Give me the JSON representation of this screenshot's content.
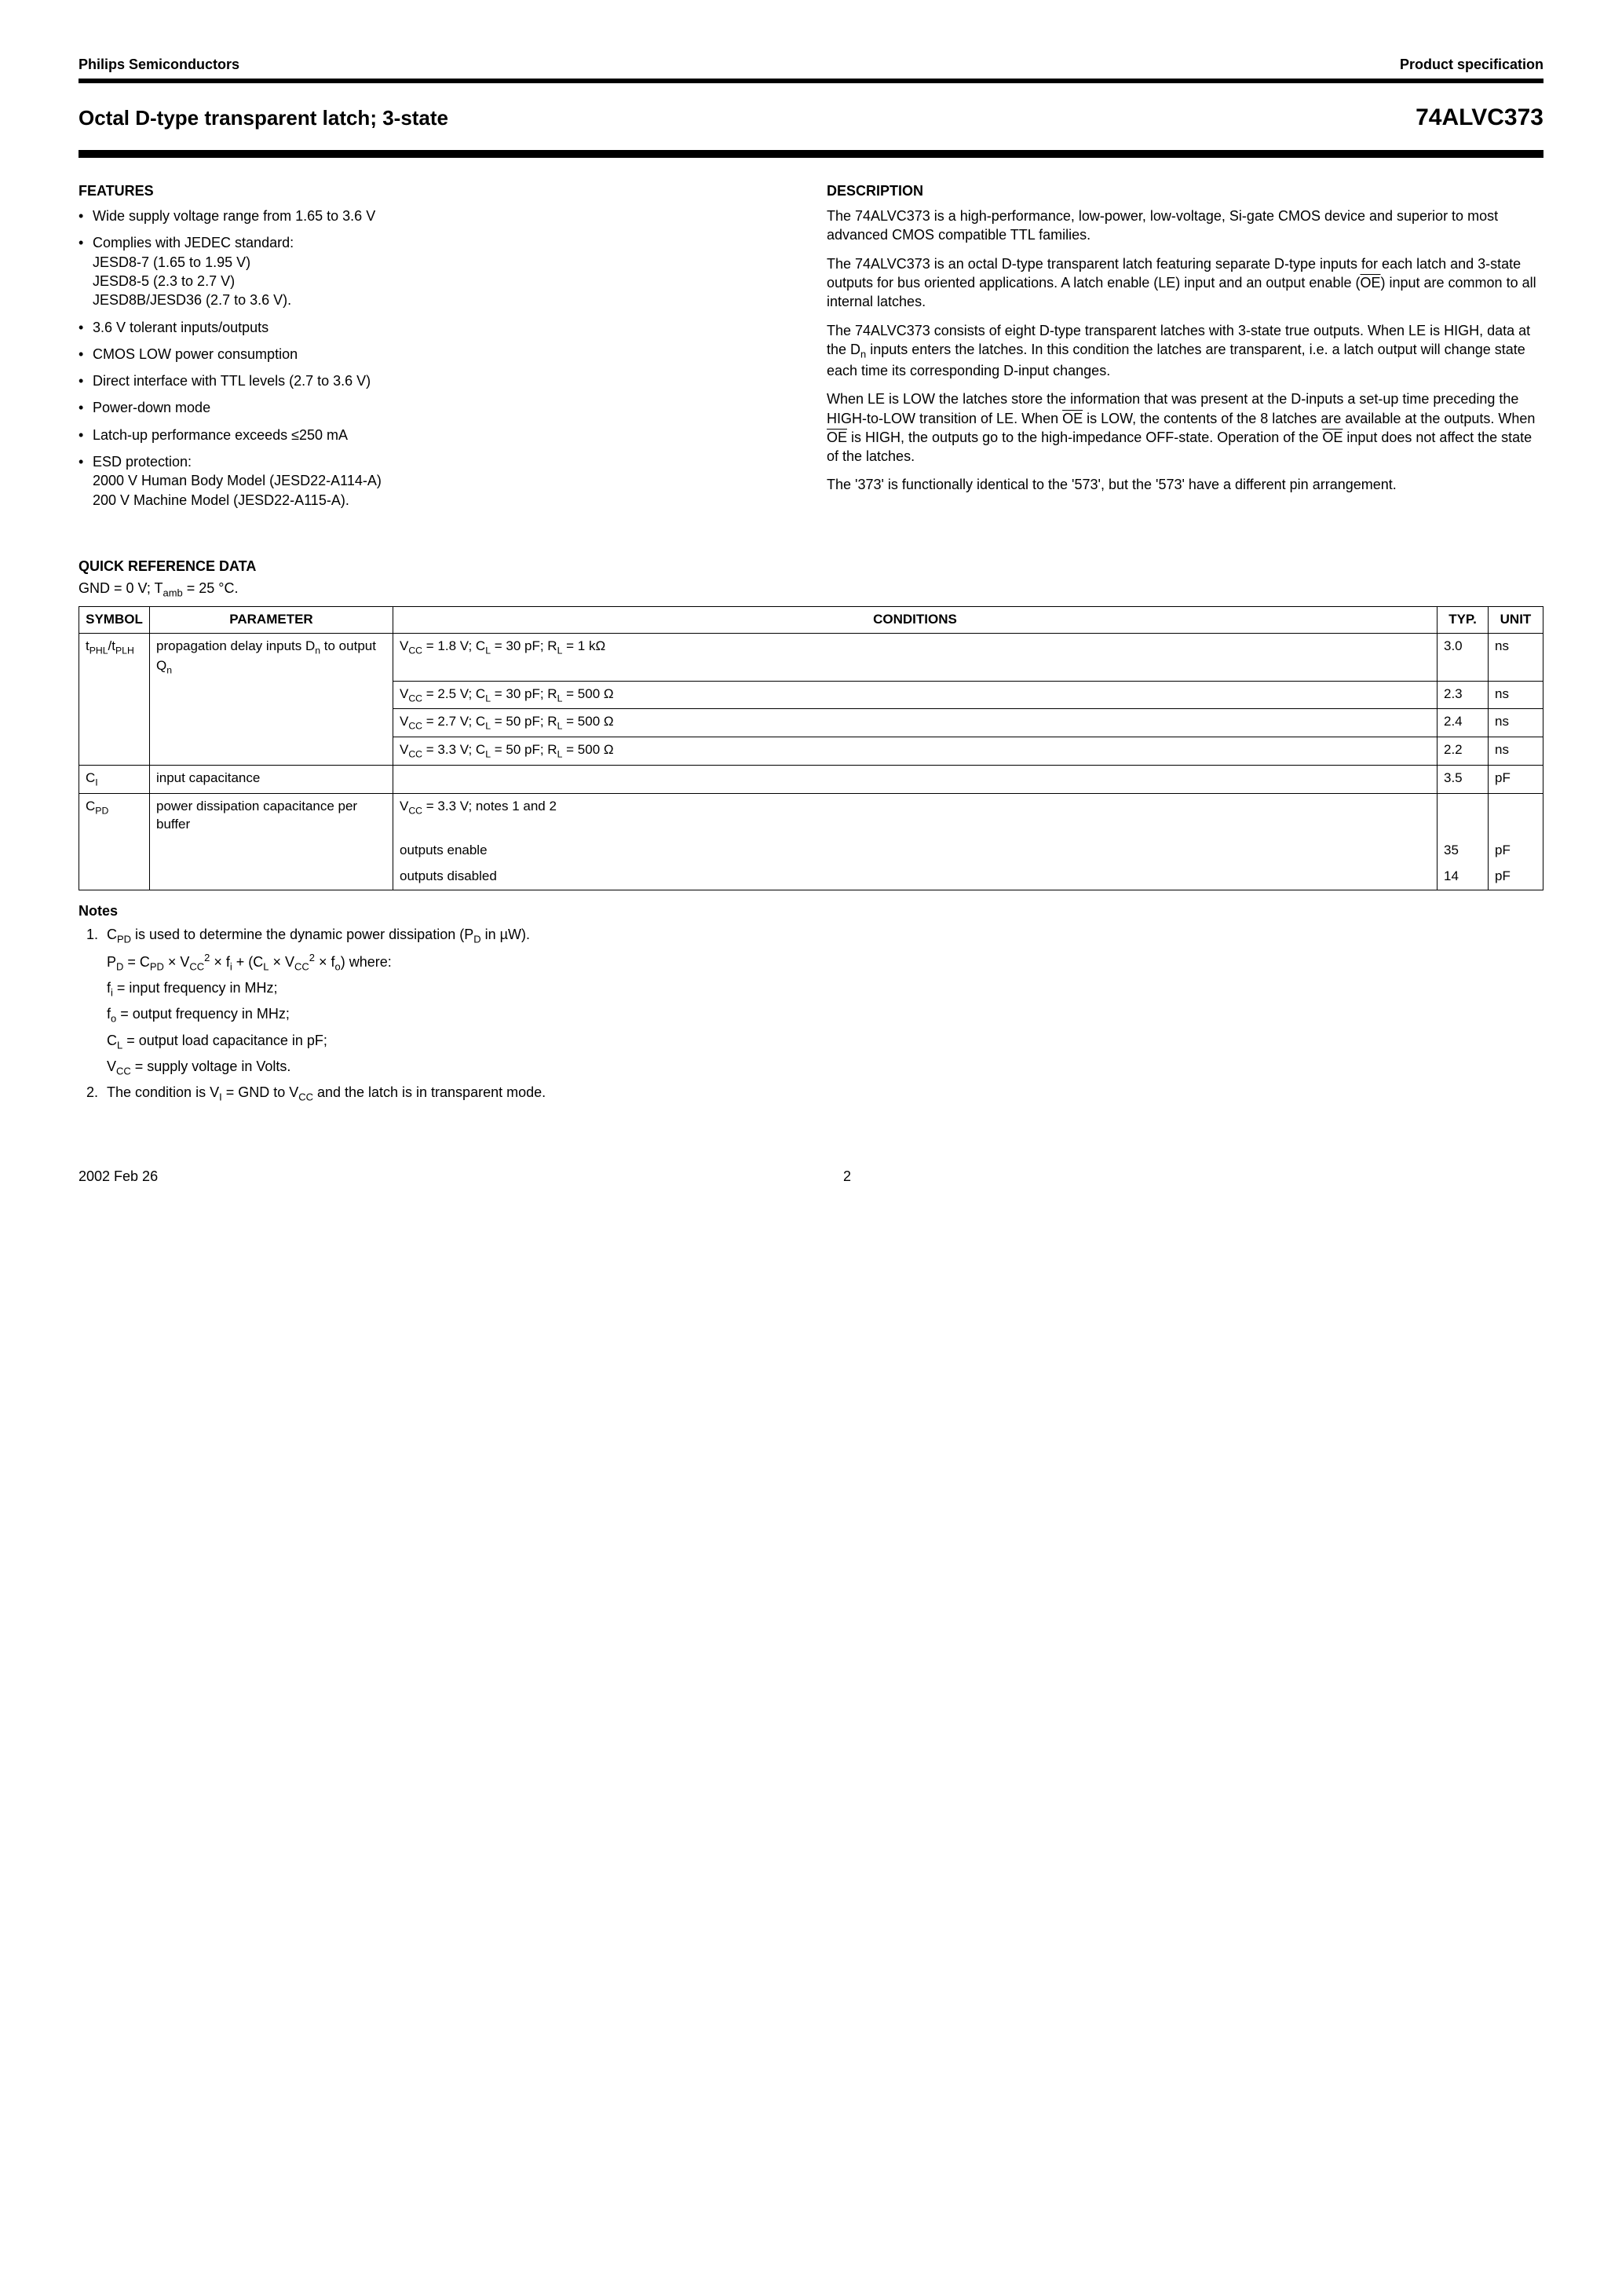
{
  "header": {
    "company": "Philips Semiconductors",
    "doctype": "Product specification"
  },
  "title": {
    "name": "Octal D-type transparent latch; 3-state",
    "part": "74ALVC373"
  },
  "features": {
    "heading": "FEATURES",
    "items": [
      {
        "text": "Wide supply voltage range from 1.65 to 3.6 V"
      },
      {
        "text": "Complies with JEDEC standard:",
        "sub": [
          "JESD8-7 (1.65 to 1.95 V)",
          "JESD8-5 (2.3 to 2.7 V)",
          "JESD8B/JESD36 (2.7 to 3.6 V)."
        ]
      },
      {
        "text": "3.6 V tolerant inputs/outputs"
      },
      {
        "text": "CMOS LOW power consumption"
      },
      {
        "text": "Direct interface with TTL levels (2.7 to 3.6 V)"
      },
      {
        "text": "Power-down mode"
      },
      {
        "text": "Latch-up performance exceeds ≤250 mA"
      },
      {
        "text": "ESD protection:",
        "sub": [
          "2000 V Human Body Model (JESD22-A114-A)",
          "200 V Machine Model (JESD22-A115-A)."
        ]
      }
    ]
  },
  "description": {
    "heading": "DESCRIPTION",
    "p1": "The 74ALVC373 is a high-performance, low-power, low-voltage, Si-gate CMOS device and superior to most advanced CMOS compatible TTL families.",
    "p5": "The '373' is functionally identical to the '573', but the '573' have a different pin arrangement."
  },
  "qrd": {
    "heading": "QUICK REFERENCE DATA",
    "gnd_part": "GND = 0 V; T",
    "amb_eq": " = 25 °C.",
    "columns": {
      "sym": "SYMBOL",
      "param": "PARAMETER",
      "cond": "CONDITIONS",
      "typ": "TYP.",
      "unit": "UNIT"
    }
  },
  "table": {
    "r1": {
      "param": "propagation delay inputs D",
      "param2": " to output Q",
      "typ": "3.0",
      "unit": "ns"
    },
    "r2": {
      "typ": "2.3",
      "unit": "ns"
    },
    "r3": {
      "typ": "2.4",
      "unit": "ns"
    },
    "r4": {
      "typ": "2.2",
      "unit": "ns"
    },
    "r5": {
      "param": "input capacitance",
      "cond": "",
      "typ": "3.5",
      "unit": "pF"
    },
    "r6": {
      "param": "power dissipation capacitance per buffer",
      "typ": "",
      "unit": ""
    },
    "r7": {
      "cond": "outputs enable",
      "typ": "35",
      "unit": "pF"
    },
    "r8": {
      "cond": "outputs disabled",
      "typ": "14",
      "unit": "pF"
    }
  },
  "cond_vals": {
    "v18": "1.8",
    "v25": "2.5",
    "v27": "2.7",
    "v33": "3.3",
    "c30": "30",
    "c50": "50",
    "r1k": "1 kΩ",
    "r500": "500 Ω"
  },
  "notes": {
    "heading": "Notes",
    "n1_lead": "C",
    "n1_text": " is used to determine the dynamic power dissipation (P",
    "n1_tail": " in µW).",
    "fi_label": " = input frequency in MHz;",
    "fo_label": " = output frequency in MHz;",
    "cl_label": " = output load capacitance in pF;",
    "vcc_label": " = supply voltage in Volts.",
    "n2_lead": "The condition is V",
    "n2_mid": " = GND to V",
    "n2_tail": " and the latch is in transparent mode."
  },
  "footer": {
    "date": "2002 Feb 26",
    "page": "2"
  }
}
